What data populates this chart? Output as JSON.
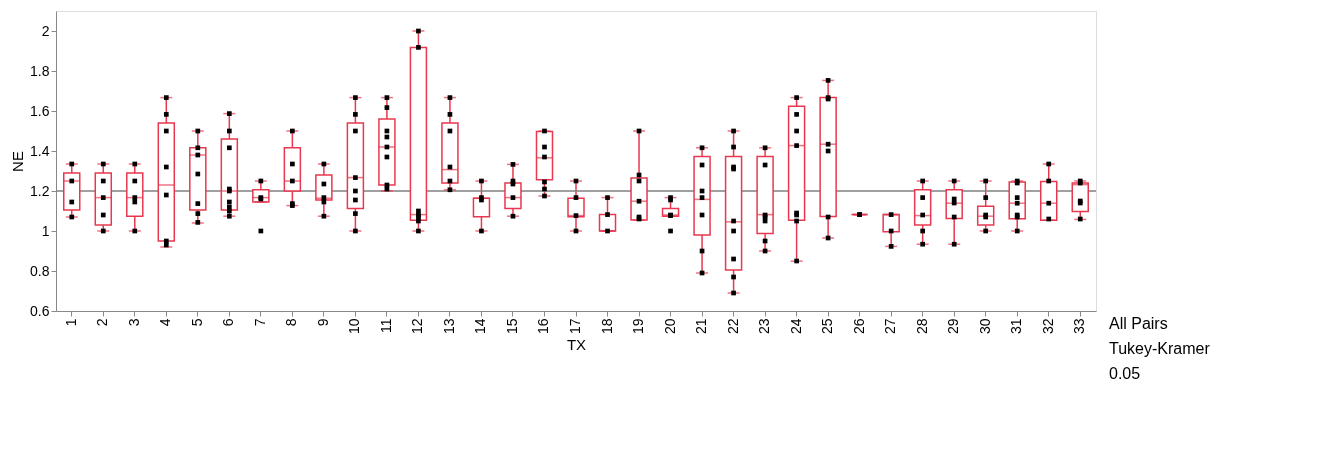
{
  "chart_data": {
    "type": "box",
    "xlabel": "TX",
    "ylabel": "NE",
    "categories": [
      "1",
      "2",
      "3",
      "4",
      "5",
      "6",
      "7",
      "8",
      "9",
      "10",
      "11",
      "12",
      "13",
      "14",
      "15",
      "16",
      "17",
      "18",
      "19",
      "20",
      "21",
      "22",
      "23",
      "24",
      "25",
      "26",
      "27",
      "28",
      "29",
      "30",
      "31",
      "32",
      "33"
    ],
    "color": "#e8384f",
    "boxes": [
      {
        "low": 1.07,
        "q1": 1.105,
        "median": 1.25,
        "q3": 1.29,
        "high": 1.335
      },
      {
        "low": 1.0,
        "q1": 1.03,
        "median": 1.167,
        "q3": 1.29,
        "high": 1.335
      },
      {
        "low": 1.0,
        "q1": 1.074,
        "median": 1.167,
        "q3": 1.29,
        "high": 1.335
      },
      {
        "low": 0.92,
        "q1": 0.95,
        "median": 1.23,
        "q3": 1.54,
        "high": 1.667
      },
      {
        "low": 1.04,
        "q1": 1.105,
        "median": 1.38,
        "q3": 1.416,
        "high": 1.5
      },
      {
        "low": 1.074,
        "q1": 1.105,
        "median": 1.2,
        "q3": 1.46,
        "high": 1.587
      },
      {
        "low": 1.145,
        "q1": 1.145,
        "median": 1.167,
        "q3": 1.206,
        "high": 1.25
      },
      {
        "low": 1.127,
        "q1": 1.2,
        "median": 1.25,
        "q3": 1.416,
        "high": 1.5
      },
      {
        "low": 1.074,
        "q1": 1.155,
        "median": 1.164,
        "q3": 1.28,
        "high": 1.335
      },
      {
        "low": 1.0,
        "q1": 1.113,
        "median": 1.267,
        "q3": 1.54,
        "high": 1.667
      },
      {
        "low": 1.2,
        "q1": 1.23,
        "median": 1.42,
        "q3": 1.56,
        "high": 1.667
      },
      {
        "low": 1.0,
        "q1": 1.054,
        "median": 1.082,
        "q3": 1.918,
        "high": 2.0
      },
      {
        "low": 1.206,
        "q1": 1.24,
        "median": 1.307,
        "q3": 1.54,
        "high": 1.667
      },
      {
        "low": 1.0,
        "q1": 1.071,
        "median": 1.164,
        "q3": 1.164,
        "high": 1.25
      },
      {
        "low": 1.074,
        "q1": 1.113,
        "median": 1.167,
        "q3": 1.24,
        "high": 1.333
      },
      {
        "low": 1.175,
        "q1": 1.256,
        "median": 1.366,
        "q3": 1.498,
        "high": 1.5
      },
      {
        "low": 1.0,
        "q1": 1.071,
        "median": 1.077,
        "q3": 1.164,
        "high": 1.25
      },
      {
        "low": 1.0,
        "q1": 1.0,
        "median": 1.0,
        "q3": 1.082,
        "high": 1.167
      },
      {
        "low": 1.055,
        "q1": 1.055,
        "median": 1.149,
        "q3": 1.265,
        "high": 1.5
      },
      {
        "low": 1.074,
        "q1": 1.074,
        "median": 1.08,
        "q3": 1.113,
        "high": 1.167
      },
      {
        "low": 0.79,
        "q1": 0.98,
        "median": 1.158,
        "q3": 1.372,
        "high": 1.416
      },
      {
        "low": 0.69,
        "q1": 0.805,
        "median": 1.046,
        "q3": 1.372,
        "high": 1.5
      },
      {
        "low": 0.9,
        "q1": 0.988,
        "median": 1.082,
        "q3": 1.372,
        "high": 1.416
      },
      {
        "low": 0.849,
        "q1": 1.054,
        "median": 1.427,
        "q3": 1.624,
        "high": 1.667
      },
      {
        "low": 0.965,
        "q1": 1.072,
        "median": 1.434,
        "q3": 1.667,
        "high": 1.753
      },
      {
        "low": 1.082,
        "q1": 1.082,
        "median": 1.082,
        "q3": 1.082,
        "high": 1.082
      },
      {
        "low": 0.923,
        "q1": 0.996,
        "median": 1.082,
        "q3": 1.082,
        "high": 1.082
      },
      {
        "low": 0.934,
        "q1": 1.03,
        "median": 1.077,
        "q3": 1.206,
        "high": 1.25
      },
      {
        "low": 0.934,
        "q1": 1.063,
        "median": 1.139,
        "q3": 1.206,
        "high": 1.25
      },
      {
        "low": 1.0,
        "q1": 1.03,
        "median": 1.074,
        "q3": 1.124,
        "high": 1.25
      },
      {
        "low": 1.0,
        "q1": 1.061,
        "median": 1.139,
        "q3": 1.245,
        "high": 1.25
      },
      {
        "low": 1.054,
        "q1": 1.054,
        "median": 1.139,
        "q3": 1.248,
        "high": 1.335
      },
      {
        "low": 1.058,
        "q1": 1.097,
        "median": 1.232,
        "q3": 1.24,
        "high": 1.25
      }
    ],
    "series": [
      {
        "type": "scatter",
        "color": "#000000",
        "marker": "square",
        "x": [
          "1",
          "1",
          "1",
          "1",
          "2",
          "2",
          "2",
          "2",
          "2",
          "3",
          "3",
          "3",
          "3",
          "3",
          "4",
          "4",
          "4",
          "4",
          "4",
          "4",
          "4",
          "5",
          "5",
          "5",
          "5",
          "5",
          "5",
          "5",
          "6",
          "6",
          "6",
          "6",
          "6",
          "6",
          "6",
          "6",
          "6",
          "7",
          "7",
          "7",
          "7",
          "8",
          "8",
          "8",
          "8",
          "8",
          "9",
          "9",
          "9",
          "9",
          "9",
          "10",
          "10",
          "10",
          "10",
          "10",
          "10",
          "10",
          "10",
          "11",
          "11",
          "11",
          "11",
          "11",
          "11",
          "11",
          "11",
          "12",
          "12",
          "12",
          "12",
          "12",
          "12",
          "12",
          "13",
          "13",
          "13",
          "13",
          "13",
          "13",
          "14",
          "14",
          "14",
          "14",
          "15",
          "15",
          "15",
          "15",
          "15",
          "16",
          "16",
          "16",
          "16",
          "16",
          "16",
          "17",
          "17",
          "17",
          "17",
          "18",
          "18",
          "18",
          "19",
          "19",
          "19",
          "19",
          "19",
          "19",
          "20",
          "20",
          "20",
          "20",
          "20",
          "21",
          "21",
          "21",
          "21",
          "21",
          "21",
          "21",
          "22",
          "22",
          "22",
          "22",
          "22",
          "22",
          "22",
          "22",
          "22",
          "23",
          "23",
          "23",
          "23",
          "23",
          "23",
          "23",
          "24",
          "24",
          "24",
          "24",
          "24",
          "24",
          "24",
          "24",
          "25",
          "25",
          "25",
          "25",
          "25",
          "25",
          "25",
          "26",
          "26",
          "27",
          "27",
          "27",
          "28",
          "28",
          "28",
          "28",
          "28",
          "29",
          "29",
          "29",
          "29",
          "29",
          "30",
          "30",
          "30",
          "30",
          "30",
          "31",
          "31",
          "31",
          "31",
          "31",
          "31",
          "31",
          "32",
          "32",
          "32",
          "32",
          "33",
          "33",
          "33",
          "33",
          "33"
        ],
        "values": [
          1.335,
          1.25,
          1.145,
          1.07,
          1.335,
          1.25,
          1.167,
          1.08,
          1.0,
          1.335,
          1.25,
          1.167,
          1.145,
          1.0,
          1.667,
          1.583,
          1.5,
          1.32,
          1.18,
          0.95,
          0.93,
          1.5,
          1.416,
          1.38,
          1.285,
          1.137,
          1.087,
          1.043,
          1.587,
          1.5,
          1.416,
          1.21,
          1.2,
          1.145,
          1.12,
          1.1,
          1.074,
          1.25,
          1.167,
          1.16,
          1.0,
          1.5,
          1.335,
          1.25,
          1.137,
          1.127,
          1.335,
          1.235,
          1.167,
          1.145,
          1.074,
          1.667,
          1.583,
          1.5,
          1.267,
          1.2,
          1.155,
          1.087,
          1.0,
          1.667,
          1.617,
          1.5,
          1.47,
          1.42,
          1.37,
          1.23,
          1.21,
          2.0,
          1.918,
          1.1,
          1.08,
          1.07,
          1.05,
          1.0,
          1.667,
          1.583,
          1.5,
          1.32,
          1.25,
          1.206,
          1.25,
          1.167,
          1.155,
          1.0,
          1.333,
          1.25,
          1.235,
          1.167,
          1.074,
          1.5,
          1.42,
          1.37,
          1.245,
          1.21,
          1.175,
          1.25,
          1.167,
          1.077,
          1.0,
          1.167,
          1.082,
          1.0,
          1.5,
          1.28,
          1.25,
          1.149,
          1.07,
          1.06,
          1.167,
          1.155,
          1.08,
          1.077,
          1.0,
          1.416,
          1.33,
          1.2,
          1.167,
          1.08,
          0.9,
          0.79,
          1.5,
          1.42,
          1.32,
          1.31,
          1.05,
          1.0,
          0.86,
          0.77,
          0.69,
          1.416,
          1.33,
          1.08,
          1.07,
          1.05,
          0.95,
          0.9,
          1.667,
          1.583,
          1.5,
          1.427,
          1.09,
          1.08,
          1.05,
          0.85,
          1.753,
          1.667,
          1.66,
          1.434,
          1.4,
          1.07,
          0.965,
          1.082,
          1.082,
          1.082,
          1.0,
          0.923,
          1.25,
          1.167,
          1.08,
          1.0,
          0.934,
          1.25,
          1.16,
          1.14,
          1.07,
          0.934,
          1.25,
          1.167,
          1.08,
          1.07,
          1.0,
          1.25,
          1.24,
          1.167,
          1.139,
          1.08,
          1.07,
          1.0,
          1.335,
          1.25,
          1.139,
          1.06,
          1.25,
          1.24,
          1.15,
          1.14,
          1.06
        ]
      }
    ],
    "ylim": [
      0.6,
      2.1
    ],
    "yticks": [
      0.6,
      0.8,
      1,
      1.2,
      1.4,
      1.6,
      1.8,
      2
    ],
    "ref_lines": [
      {
        "axis": "y",
        "value": 1.2,
        "color": "#808080"
      }
    ],
    "grid": false,
    "annotations": [
      "All Pairs",
      "Tukey-Kramer",
      "0.05"
    ]
  }
}
